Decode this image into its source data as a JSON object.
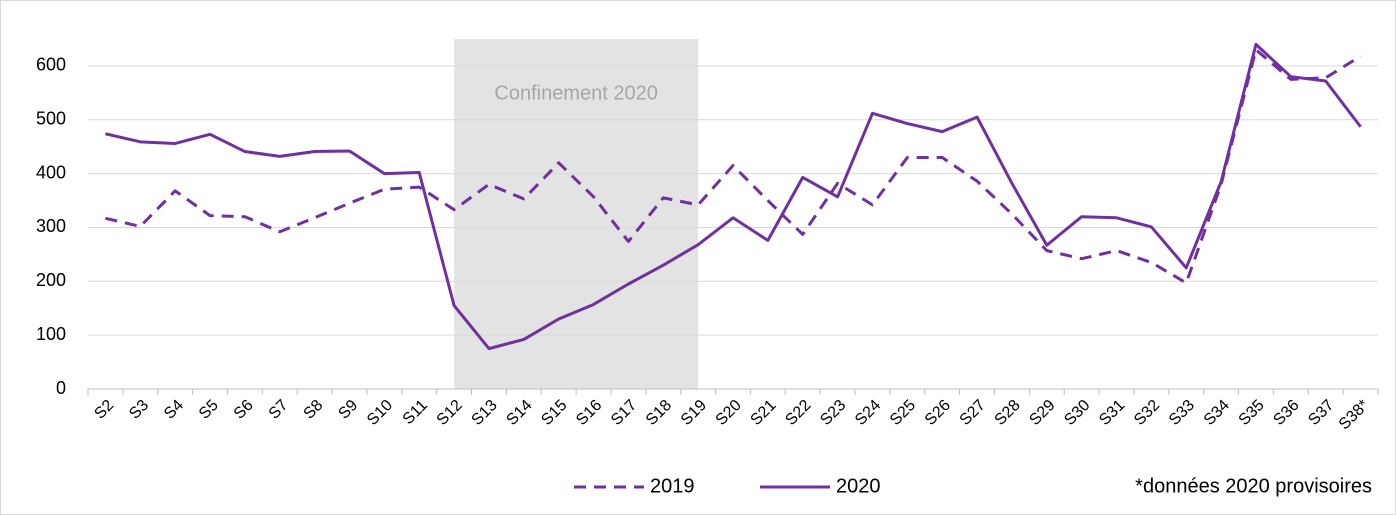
{
  "chart_data": {
    "type": "line",
    "categories": [
      "S2",
      "S3",
      "S4",
      "S5",
      "S6",
      "S7",
      "S8",
      "S9",
      "S10",
      "S11",
      "S12",
      "S13",
      "S14",
      "S15",
      "S16",
      "S17",
      "S18",
      "S19",
      "S20",
      "S21",
      "S22",
      "S23",
      "S24",
      "S25",
      "S26",
      "S27",
      "S28",
      "S29",
      "S30",
      "S31",
      "S32",
      "S33",
      "S34",
      "S35",
      "S36",
      "S37",
      "S38*"
    ],
    "series": [
      {
        "name": "2019",
        "color": "#7030a0",
        "style": "dashed",
        "values": [
          317,
          302,
          368,
          322,
          320,
          292,
          318,
          345,
          371,
          375,
          333,
          380,
          353,
          420,
          357,
          274,
          355,
          342,
          415,
          350,
          287,
          382,
          342,
          430,
          430,
          386,
          325,
          257,
          242,
          257,
          235,
          197,
          380,
          630,
          575,
          578,
          618
        ]
      },
      {
        "name": "2020",
        "color": "#7030a0",
        "style": "solid",
        "values": [
          474,
          459,
          456,
          473,
          441,
          432,
          441,
          442,
          400,
          402,
          155,
          75,
          92,
          130,
          157,
          195,
          230,
          268,
          318,
          276,
          393,
          357,
          512,
          493,
          478,
          505,
          382,
          267,
          320,
          318,
          301,
          225,
          385,
          640,
          580,
          572,
          487
        ]
      }
    ],
    "ylim": [
      0,
      650
    ],
    "yticks": [
      0,
      100,
      200,
      300,
      400,
      500,
      600
    ],
    "grid": true,
    "shaded_range": {
      "from": "S12",
      "to": "S19",
      "label": "Confinement 2020",
      "color": "#e3e3e3"
    },
    "legend": "bottom",
    "footnote": "*données 2020 provisoires"
  }
}
